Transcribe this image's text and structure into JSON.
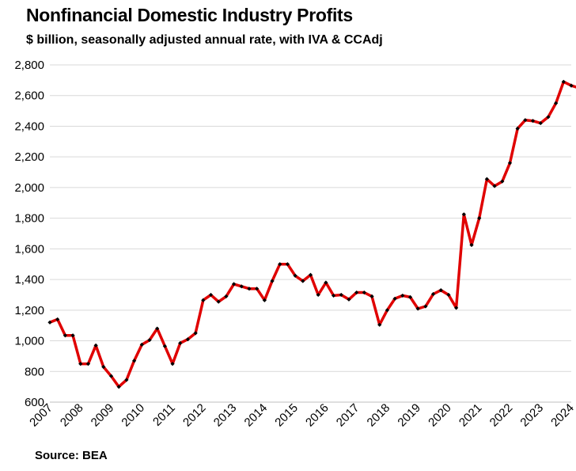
{
  "chart_data": {
    "type": "line",
    "title": "Nonfinancial Domestic Industry Profits",
    "subtitle": "$ billion, seasonally adjusted annual rate, with IVA & CCAdj",
    "source": "Source: BEA",
    "xlabel": "",
    "ylabel": "",
    "ylim": [
      600,
      2800
    ],
    "y_ticks": [
      600,
      800,
      1000,
      1200,
      1400,
      1600,
      1800,
      2000,
      2200,
      2400,
      2600,
      2800
    ],
    "y_tick_labels": [
      "600",
      "800",
      "1,000",
      "1,200",
      "1,400",
      "1,600",
      "1,800",
      "2,000",
      "2,200",
      "2,400",
      "2,600",
      "2,800"
    ],
    "x_tick_labels": [
      "2007",
      "2008",
      "2009",
      "2010",
      "2011",
      "2012",
      "2013",
      "2014",
      "2015",
      "2016",
      "2017",
      "2018",
      "2019",
      "2020",
      "2021",
      "2022",
      "2023",
      "2024"
    ],
    "grid": true,
    "line_color": "#e00000",
    "marker_color": "#000000",
    "series": [
      {
        "x": [
          "2007 Q1",
          "2007 Q2",
          "2007 Q3",
          "2007 Q4",
          "2008 Q1",
          "2008 Q2",
          "2008 Q3",
          "2008 Q4",
          "2009 Q1",
          "2009 Q2",
          "2009 Q3",
          "2009 Q4",
          "2010 Q1",
          "2010 Q2",
          "2010 Q3",
          "2010 Q4",
          "2011 Q1",
          "2011 Q2",
          "2011 Q3",
          "2011 Q4",
          "2012 Q1",
          "2012 Q2",
          "2012 Q3",
          "2012 Q4",
          "2013 Q1",
          "2013 Q2",
          "2013 Q3",
          "2013 Q4",
          "2014 Q1",
          "2014 Q2",
          "2014 Q3",
          "2014 Q4",
          "2015 Q1",
          "2015 Q2",
          "2015 Q3",
          "2015 Q4",
          "2016 Q1",
          "2016 Q2",
          "2016 Q3",
          "2016 Q4",
          "2017 Q1",
          "2017 Q2",
          "2017 Q3",
          "2017 Q4",
          "2018 Q1",
          "2018 Q2",
          "2018 Q3",
          "2018 Q4",
          "2019 Q1",
          "2019 Q2",
          "2019 Q3",
          "2019 Q4",
          "2020 Q1",
          "2020 Q2",
          "2020 Q3",
          "2020 Q4",
          "2021 Q1",
          "2021 Q2",
          "2021 Q3",
          "2021 Q4",
          "2022 Q1",
          "2022 Q2",
          "2022 Q3",
          "2022 Q4",
          "2023 Q1",
          "2023 Q2",
          "2023 Q3",
          "2023 Q4",
          "2024 Q1",
          "2024 Q2"
        ],
        "values": [
          1120,
          1140,
          1035,
          1035,
          850,
          850,
          970,
          830,
          770,
          700,
          745,
          870,
          975,
          1005,
          1080,
          965,
          850,
          985,
          1010,
          1050,
          1265,
          1300,
          1255,
          1290,
          1370,
          1355,
          1340,
          1340,
          1265,
          1390,
          1500,
          1500,
          1425,
          1390,
          1430,
          1300,
          1380,
          1295,
          1300,
          1270,
          1315,
          1315,
          1290,
          1105,
          1200,
          1275,
          1295,
          1285,
          1210,
          1225,
          1305,
          1330,
          1300,
          1215,
          1825,
          1625,
          1800,
          2055,
          2010,
          2040,
          2160,
          2385,
          2440,
          2435,
          2420,
          2460,
          2550,
          2690,
          2665,
          2650
        ]
      }
    ]
  }
}
